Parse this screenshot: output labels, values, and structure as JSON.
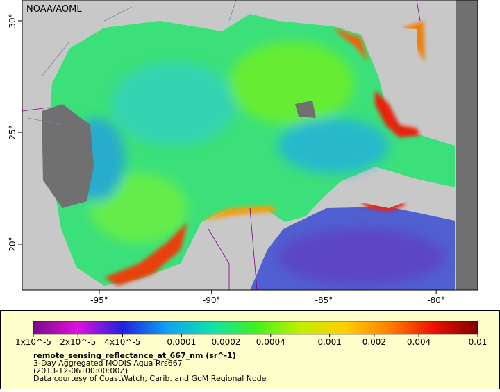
{
  "map": {
    "title": "NOAA/AOML",
    "xlim": [
      -98.43,
      -78.15
    ],
    "ylim": [
      17.95,
      30.93
    ],
    "xticks": [
      {
        "value": -95,
        "label": "-95°"
      },
      {
        "value": -90,
        "label": "-90°"
      },
      {
        "value": -85,
        "label": "-85°"
      },
      {
        "value": -80,
        "label": "-80°"
      }
    ],
    "yticks": [
      {
        "value": 20,
        "label": "20°"
      },
      {
        "value": 25,
        "label": "25°"
      },
      {
        "value": 30,
        "label": "30°"
      }
    ]
  },
  "colorbar": {
    "log_scale": true,
    "lim": [
      1e-05,
      0.01
    ],
    "colormap": [
      "#7a0a8c",
      "#e010e0",
      "#2020e0",
      "#10a0f0",
      "#10e0b0",
      "#40f020",
      "#c0f000",
      "#ffd000",
      "#ff8000",
      "#f01000",
      "#800000"
    ],
    "ticks": [
      {
        "value": 1e-05,
        "label": "1x10^-5"
      },
      {
        "value": 2e-05,
        "label": "2x10^-5"
      },
      {
        "value": 4e-05,
        "label": "4x10^-5"
      },
      0.0001,
      0.0002,
      0.0004,
      0.001,
      0.002,
      0.004,
      0.01
    ],
    "variable": "remote_sensing_reflectance_at_667_nm (sr^-1)",
    "description": "3-Day Aggregated MODIS Aqua Rrs667",
    "time": "(2013-12-06T00:00:00Z)",
    "credit": "Data courtesy of CoastWatch, Carib. and GoM Regional Node"
  }
}
